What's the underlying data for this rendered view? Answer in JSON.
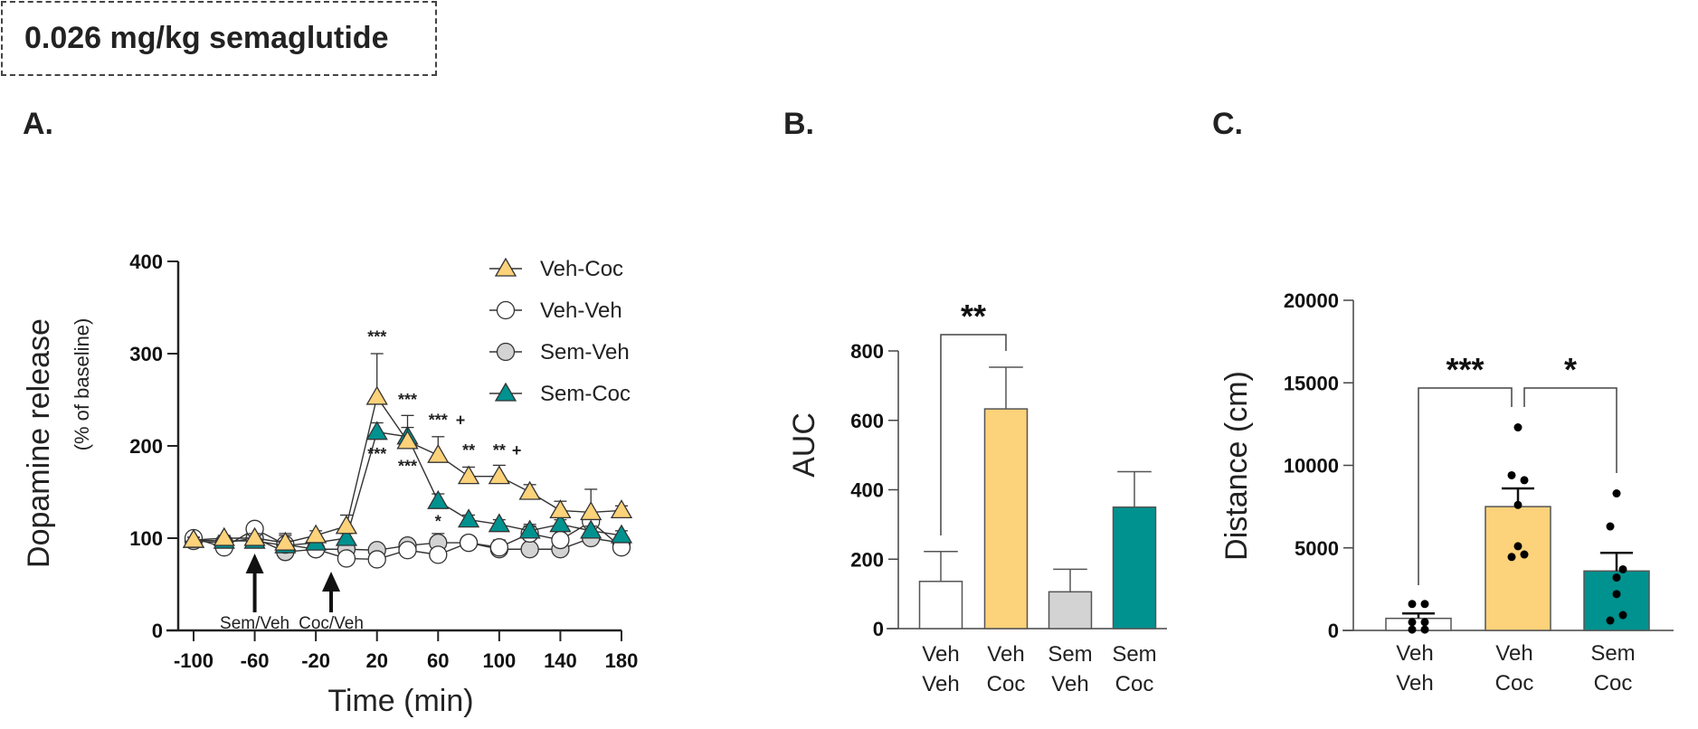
{
  "header": {
    "title": "0.026 mg/kg semaglutide"
  },
  "panels": {
    "a": "A.",
    "b": "B.",
    "c": "C."
  },
  "colors": {
    "veh_coc": "#FCD27A",
    "sem_coc": "#00928F",
    "sem_veh": "#D3D3D3",
    "veh_veh": "#FFFFFF"
  },
  "chart_data": [
    {
      "type": "line",
      "xlabel": "Time (min)",
      "ylabel": "Dopamine release",
      "ylabel_sub": "(% of baseline)",
      "xlim": [
        -100,
        180
      ],
      "ylim": [
        0,
        400
      ],
      "xticks": [
        -100,
        -60,
        -20,
        20,
        60,
        100,
        140,
        180
      ],
      "yticks": [
        0,
        100,
        200,
        300,
        400
      ],
      "legend_position": "top-right",
      "x": [
        -100,
        -80,
        -60,
        -40,
        -20,
        0,
        20,
        40,
        60,
        80,
        100,
        120,
        140,
        160,
        180
      ],
      "series": [
        {
          "name": "Veh-Coc",
          "marker": "triangle",
          "color": "#FCD27A",
          "values": [
            98,
            100,
            100,
            95,
            103,
            113,
            253,
            205,
            190,
            167,
            167,
            150,
            130,
            128,
            130
          ],
          "sem": [
            3,
            3,
            5,
            10,
            5,
            12,
            47,
            28,
            20,
            10,
            12,
            8,
            10,
            25,
            5
          ]
        },
        {
          "name": "Veh-Veh",
          "marker": "circle",
          "color": "#FFFFFF",
          "values": [
            100,
            90,
            110,
            93,
            88,
            78,
            77,
            87,
            82,
            95,
            90,
            105,
            98,
            118,
            90
          ],
          "sem": [
            3,
            3,
            3,
            10,
            3,
            3,
            5,
            5,
            5,
            5,
            8,
            10,
            10,
            5,
            5
          ]
        },
        {
          "name": "Sem-Veh",
          "marker": "circle",
          "color": "#D3D3D3",
          "values": [
            97,
            95,
            100,
            85,
            88,
            88,
            87,
            92,
            95,
            95,
            88,
            88,
            88,
            100,
            95
          ],
          "sem": [
            3,
            3,
            3,
            5,
            3,
            5,
            5,
            5,
            10,
            5,
            5,
            5,
            5,
            5,
            5
          ]
        },
        {
          "name": "Sem-Coc",
          "marker": "triangle",
          "color": "#00928F",
          "values": [
            98,
            97,
            97,
            92,
            95,
            100,
            215,
            210,
            140,
            120,
            115,
            108,
            115,
            108,
            103
          ],
          "sem": [
            3,
            3,
            3,
            5,
            5,
            5,
            10,
            10,
            8,
            5,
            5,
            5,
            5,
            5,
            5
          ]
        }
      ],
      "annotations": [
        {
          "time": 20,
          "level": 318,
          "text": "***"
        },
        {
          "time": 20,
          "level": 191,
          "text": "***"
        },
        {
          "time": 40,
          "level": 250,
          "text": "***"
        },
        {
          "time": 40,
          "level": 178,
          "text": "***"
        },
        {
          "time": 60,
          "level": 228,
          "text": "***",
          "plus": "+"
        },
        {
          "time": 80,
          "level": 195,
          "text": "**"
        },
        {
          "time": 100,
          "level": 195,
          "text": "**",
          "plus": "+"
        },
        {
          "time": 60,
          "level": 118,
          "text": "*"
        }
      ],
      "arrows": [
        {
          "time": -60,
          "label": "Sem/Veh"
        },
        {
          "time": -10,
          "label": "Coc/Veh"
        }
      ]
    },
    {
      "type": "bar",
      "ylabel": "AUC",
      "ylim": [
        0,
        800
      ],
      "yticks": [
        0,
        200,
        400,
        600,
        800
      ],
      "categories": [
        [
          "Veh",
          "Veh"
        ],
        [
          "Veh",
          "Coc"
        ],
        [
          "Sem",
          "Veh"
        ],
        [
          "Sem",
          "Coc"
        ]
      ],
      "values": [
        136,
        633,
        106,
        350
      ],
      "sem": [
        86,
        120,
        65,
        102
      ],
      "colors": [
        "#FFFFFF",
        "#FCD27A",
        "#D3D3D3",
        "#00928F"
      ],
      "significance": [
        {
          "from": 0,
          "to": 1,
          "text": "**"
        }
      ]
    },
    {
      "type": "bar",
      "ylabel": "Distance (cm)",
      "ylim": [
        0,
        20000
      ],
      "yticks": [
        0,
        5000,
        10000,
        15000,
        20000
      ],
      "categories": [
        [
          "Veh",
          "Veh"
        ],
        [
          "Veh",
          "Coc"
        ],
        [
          "Sem",
          "Coc"
        ]
      ],
      "values": [
        730,
        7500,
        3600
      ],
      "sem": [
        300,
        1100,
        1100
      ],
      "colors": [
        "#FFFFFF",
        "#FCD27A",
        "#00928F"
      ],
      "points": [
        [
          1600,
          1600,
          500,
          500,
          50,
          50
        ],
        [
          12300,
          9400,
          9100,
          7600,
          5100,
          4600,
          4450
        ],
        [
          8300,
          6300,
          3700,
          3200,
          2200,
          930,
          600
        ]
      ],
      "significance": [
        {
          "from": 0,
          "to": 1,
          "text": "***"
        },
        {
          "from": 1,
          "to": 2,
          "text": "*"
        }
      ]
    }
  ]
}
